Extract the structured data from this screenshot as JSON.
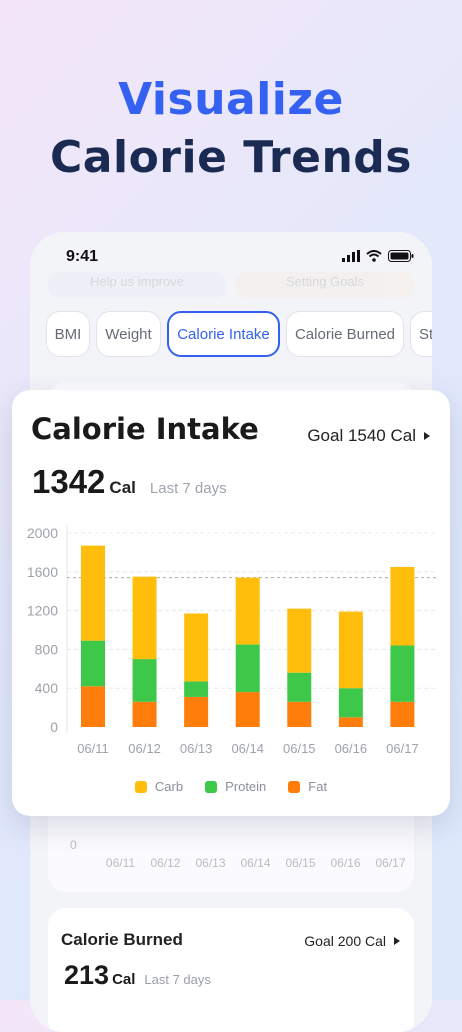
{
  "headline": {
    "line1": "Visualize",
    "line2": "Calorie Trends"
  },
  "status": {
    "time": "9:41"
  },
  "ghost_buttons": [
    "Help us improve",
    "Setting Goals"
  ],
  "tabs": [
    {
      "label": "BMI",
      "active": false
    },
    {
      "label": "Weight",
      "active": false
    },
    {
      "label": "Calorie Intake",
      "active": true
    },
    {
      "label": "Calorie Burned",
      "active": false
    },
    {
      "label": "St",
      "active": false
    }
  ],
  "intake_card": {
    "title": "Calorie Intake",
    "goal": "Goal 1540 Cal",
    "value": "1342",
    "unit": "Cal",
    "period": "Last 7 days"
  },
  "legend": {
    "carb": "Carb",
    "protein": "Protein",
    "fat": "Fat"
  },
  "colors": {
    "accent": "#3561f2",
    "carb": "#ffbe0b",
    "protein": "#3ec84a",
    "fat": "#ff7d0a",
    "headline_dark": "#1a2a52"
  },
  "background_chart": {
    "zero_label": "0",
    "x_ticks": [
      "06/11",
      "06/12",
      "06/13",
      "06/14",
      "06/15",
      "06/16",
      "06/17"
    ]
  },
  "burned_card": {
    "title": "Calorie Burned",
    "goal": "Goal 200 Cal",
    "value": "213",
    "unit": "Cal",
    "period": "Last 7 days"
  },
  "chart_data": {
    "type": "bar",
    "stacked": true,
    "categories": [
      "06/11",
      "06/12",
      "06/13",
      "06/14",
      "06/15",
      "06/16",
      "06/17"
    ],
    "series": [
      {
        "name": "Fat",
        "values": [
          420,
          260,
          310,
          360,
          260,
          100,
          260
        ]
      },
      {
        "name": "Protein",
        "values": [
          470,
          440,
          160,
          490,
          300,
          300,
          580
        ]
      },
      {
        "name": "Carb",
        "values": [
          980,
          850,
          700,
          690,
          660,
          790,
          810
        ]
      }
    ],
    "yticks": [
      "2000",
      "1600",
      "1200",
      "800",
      "400",
      "0"
    ],
    "ylim": [
      0,
      2000
    ],
    "goal_line": 1540,
    "legend_position": "bottom"
  }
}
